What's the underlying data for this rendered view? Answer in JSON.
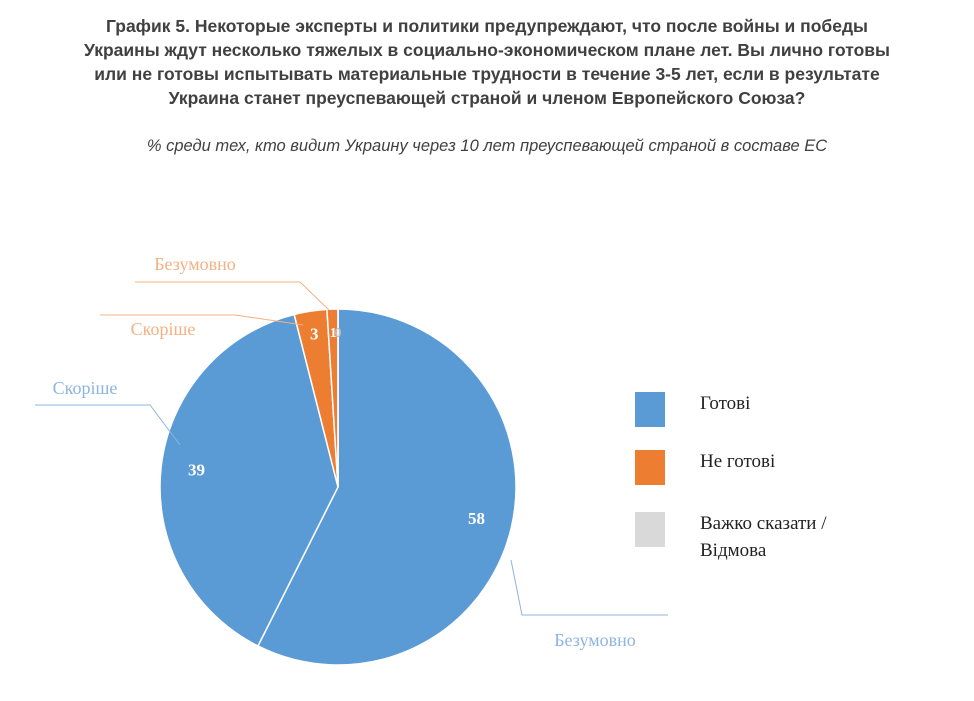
{
  "chart_data": {
    "type": "pie",
    "title": [
      "График 5. Некоторые эксперты и политики предупреждают, что после войны и победы",
      "Украины ждут несколько тяжелых в социально-экономическом плане лет. Вы лично готовы",
      "или не готовы испытывать материальные трудности в течение 3-5 лет, если в результате",
      "Украина станет преуспевающей страной и членом Европейского Союза?"
    ],
    "subtitle": "% среди тех, кто видит Украину через 10 лет преуспевающей страной в составе ЕС",
    "categories": [
      "Безумовно",
      "Скоріше",
      "Скоріше",
      "Безумовно",
      null
    ],
    "values": [
      58,
      39,
      3,
      1,
      0
    ],
    "colors": [
      "#5b9bd5",
      "#5b9bd5",
      "#ed7d31",
      "#ed7d31",
      "#d9d9d9"
    ],
    "legend": [
      {
        "name": "Готові",
        "color": "#5b9bd5"
      },
      {
        "name": "Не готові",
        "color": "#ed7d31"
      },
      {
        "name": "Важко сказати / Відмова",
        "color": "#d9d9d9"
      }
    ]
  }
}
